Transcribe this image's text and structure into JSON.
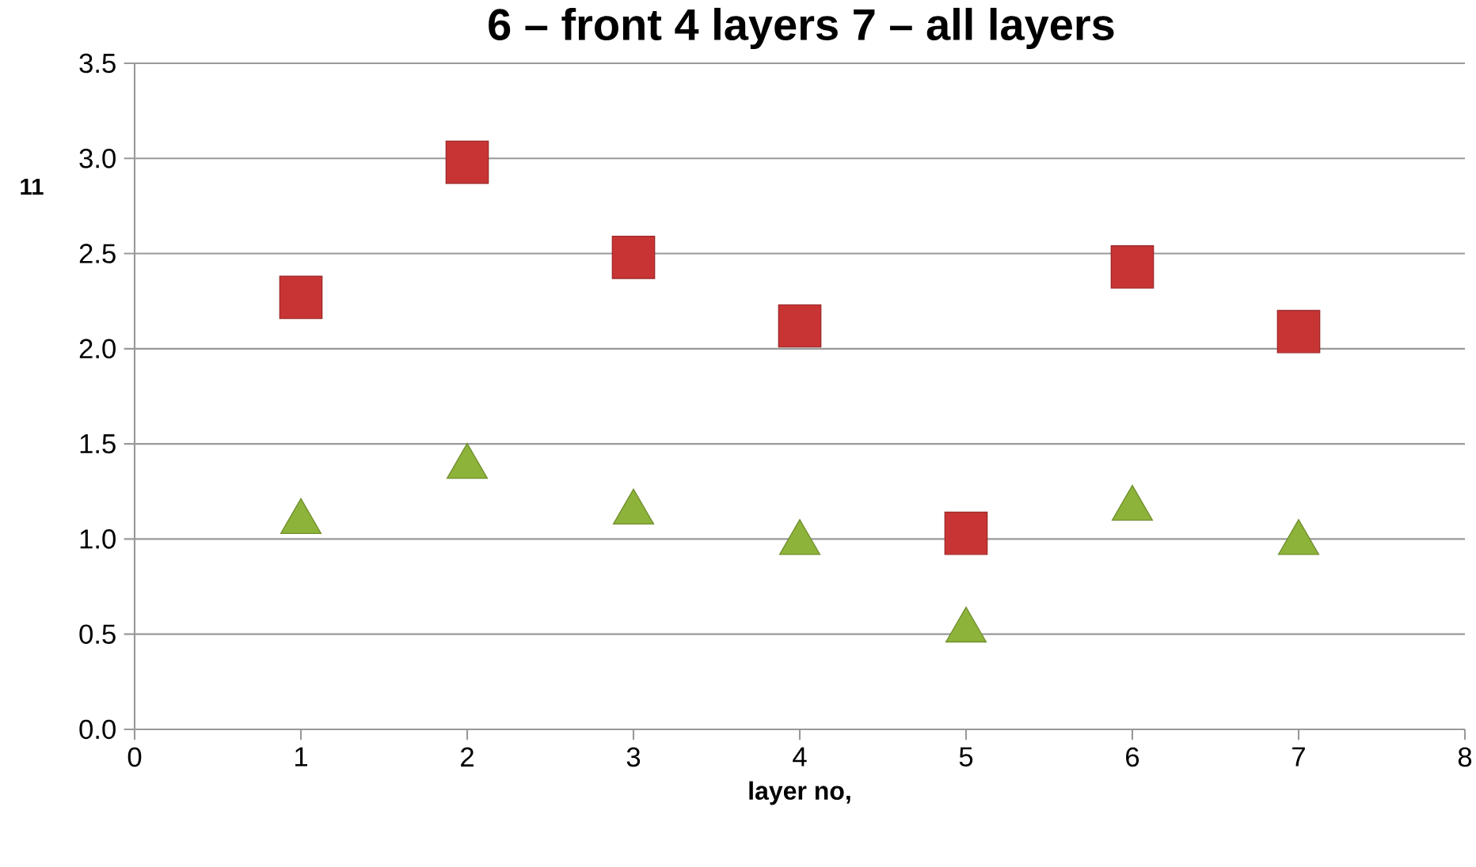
{
  "chart_data": {
    "type": "scatter",
    "title": "6 – front 4 layers    7 – all layers",
    "xlabel": "layer no,",
    "annotations": [
      "11"
    ],
    "x": [
      1,
      2,
      3,
      4,
      5,
      6,
      7
    ],
    "series": [
      {
        "color": "#c83434",
        "marker": "square",
        "values": [
          2.27,
          2.98,
          2.48,
          2.12,
          1.03,
          2.43,
          2.09
        ]
      },
      {
        "color": "#8db33a",
        "marker": "triangle",
        "values": [
          1.09,
          1.38,
          1.14,
          0.98,
          0.52,
          1.16,
          0.98
        ]
      }
    ],
    "xlim": [
      0,
      8
    ],
    "xticks": [
      0,
      1,
      2,
      3,
      4,
      5,
      6,
      7,
      8
    ],
    "ylim": [
      0,
      3.5
    ],
    "yticks": [
      {
        "value": 0,
        "label": "0.0"
      },
      {
        "value": 0.5,
        "label": "0.5"
      },
      {
        "value": 1,
        "label": "1.0"
      },
      {
        "value": 1.5,
        "label": "1.5"
      },
      {
        "value": 2,
        "label": "2.0"
      },
      {
        "value": 2.5,
        "label": "2.5"
      },
      {
        "value": 3,
        "label": "3.0"
      },
      {
        "value": 3.5,
        "label": "3.5"
      }
    ],
    "grid": "y"
  }
}
